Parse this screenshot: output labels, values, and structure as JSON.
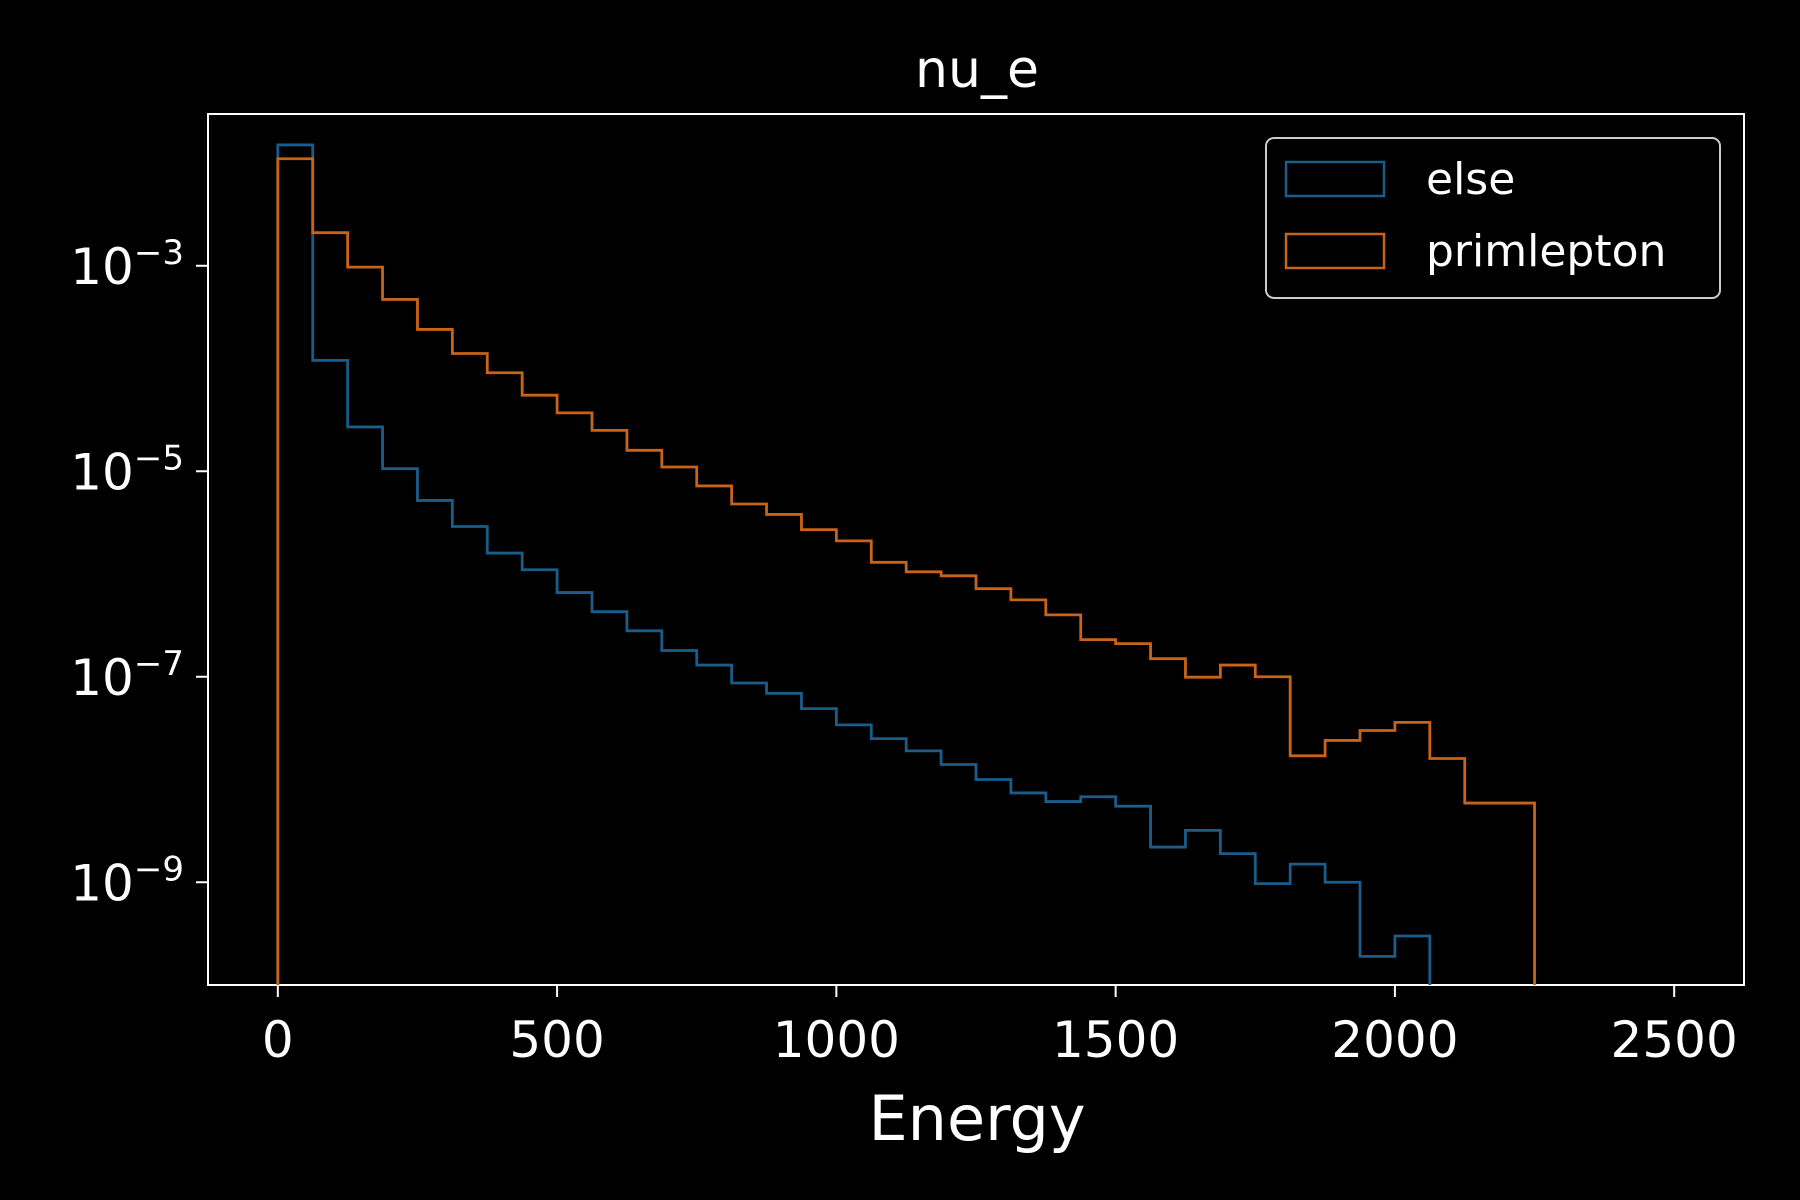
{
  "chart_data": {
    "type": "histogram-step",
    "title": "nu_e",
    "xlabel": "Energy",
    "ylabel": "",
    "xlim": [
      -125,
      2625
    ],
    "ylim": [
      1e-10,
      0.03
    ],
    "yscale": "log",
    "xticks": [
      0,
      500,
      1000,
      1500,
      2000,
      2500
    ],
    "yticks": [
      {
        "base": "10",
        "exp": "−3",
        "value": 0.001
      },
      {
        "base": "10",
        "exp": "−5",
        "value": 1e-05
      },
      {
        "base": "10",
        "exp": "−7",
        "value": 1e-07
      },
      {
        "base": "10",
        "exp": "−9",
        "value": 1e-09
      }
    ],
    "legend_position": "top-right",
    "bin_edges": [
      0,
      62.5,
      125,
      187.5,
      250,
      312.5,
      375,
      437.5,
      500,
      562.5,
      625,
      687.5,
      750,
      812.5,
      875,
      937.5,
      1000,
      1062.5,
      1125,
      1187.5,
      1250,
      1312.5,
      1375,
      1437.5,
      1500,
      1562.5,
      1625,
      1687.5,
      1750,
      1812.5,
      1875,
      1937.5,
      2000,
      2062.5,
      2125,
      2187.5,
      2250
    ],
    "series": [
      {
        "name": "else",
        "color": "#1a5d8a",
        "values": [
          0.015,
          0.00012,
          2.7e-05,
          1.06e-05,
          5.2e-06,
          2.9e-06,
          1.6e-06,
          1.1e-06,
          6.6e-07,
          4.3e-07,
          2.8e-07,
          1.8e-07,
          1.3e-07,
          8.7e-08,
          6.9e-08,
          4.9e-08,
          3.4e-08,
          2.5e-08,
          1.9e-08,
          1.4e-08,
          1e-08,
          7.4e-09,
          6.1e-09,
          6.8e-09,
          5.5e-09,
          2.2e-09,
          3.2e-09,
          1.9e-09,
          9.7e-10,
          1.5e-09,
          1e-09,
          1.9e-10,
          3e-10,
          0,
          0,
          0
        ]
      },
      {
        "name": "primlepton",
        "color": "#c96318",
        "values": [
          0.011,
          0.0021,
          0.00097,
          0.00047,
          0.00024,
          0.00014,
          9.1e-05,
          5.5e-05,
          3.7e-05,
          2.5e-05,
          1.6e-05,
          1.1e-05,
          7.2e-06,
          4.8e-06,
          3.8e-06,
          2.7e-06,
          2.1e-06,
          1.3e-06,
          1.05e-06,
          9.6e-07,
          7.2e-07,
          5.6e-07,
          4e-07,
          2.3e-07,
          2.1e-07,
          1.5e-07,
          9.9e-08,
          1.3e-07,
          1e-07,
          1.7e-08,
          2.4e-08,
          3e-08,
          3.6e-08,
          1.6e-08,
          5.9e-09,
          5.9e-09
        ]
      }
    ]
  }
}
